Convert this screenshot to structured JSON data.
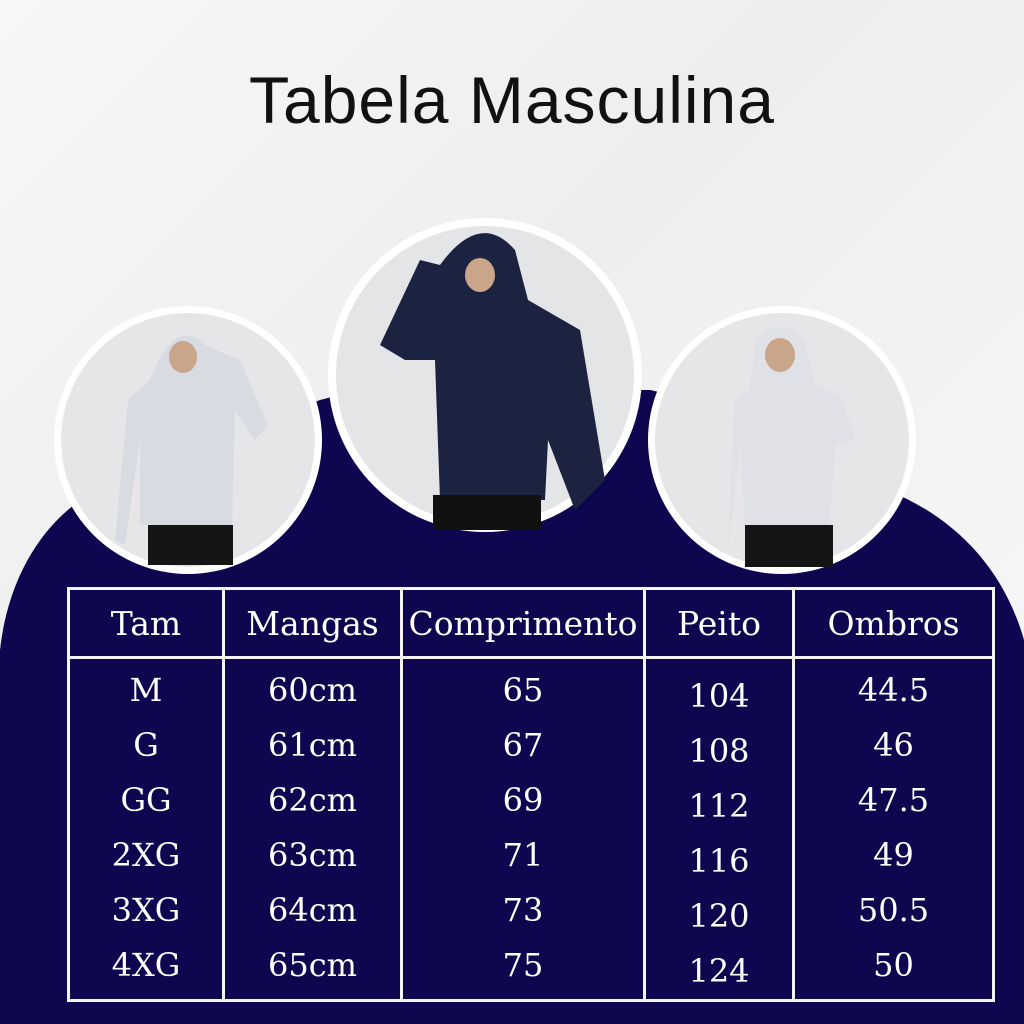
{
  "title": "Tabela Masculina",
  "colors": {
    "navy": "#0f0650",
    "background": "#f2f2f2",
    "lines": "#f4f4f4",
    "hoodie_light": "#dfe1e6",
    "hoodie_navy": "#1c2340"
  },
  "photos": [
    {
      "name": "light-gray-hoodie-model"
    },
    {
      "name": "navy-hoodie-model"
    },
    {
      "name": "light-gray-hoodie-model-2"
    }
  ],
  "table": {
    "headers": [
      "Tam",
      "Mangas",
      "Comprimento",
      "Peito",
      "Ombros"
    ],
    "columns": [
      [
        "M",
        "G",
        "GG",
        "2XG",
        "3XG",
        "4XG"
      ],
      [
        "60cm",
        "61cm",
        "62cm",
        "63cm",
        "64cm",
        "65cm"
      ],
      [
        "65",
        "67",
        "69",
        "71",
        "73",
        "75"
      ],
      [
        "104",
        "108",
        "112",
        "116",
        "120",
        "124"
      ],
      [
        "44.5",
        "46",
        "47.5",
        "49",
        "50.5",
        "50"
      ]
    ]
  }
}
